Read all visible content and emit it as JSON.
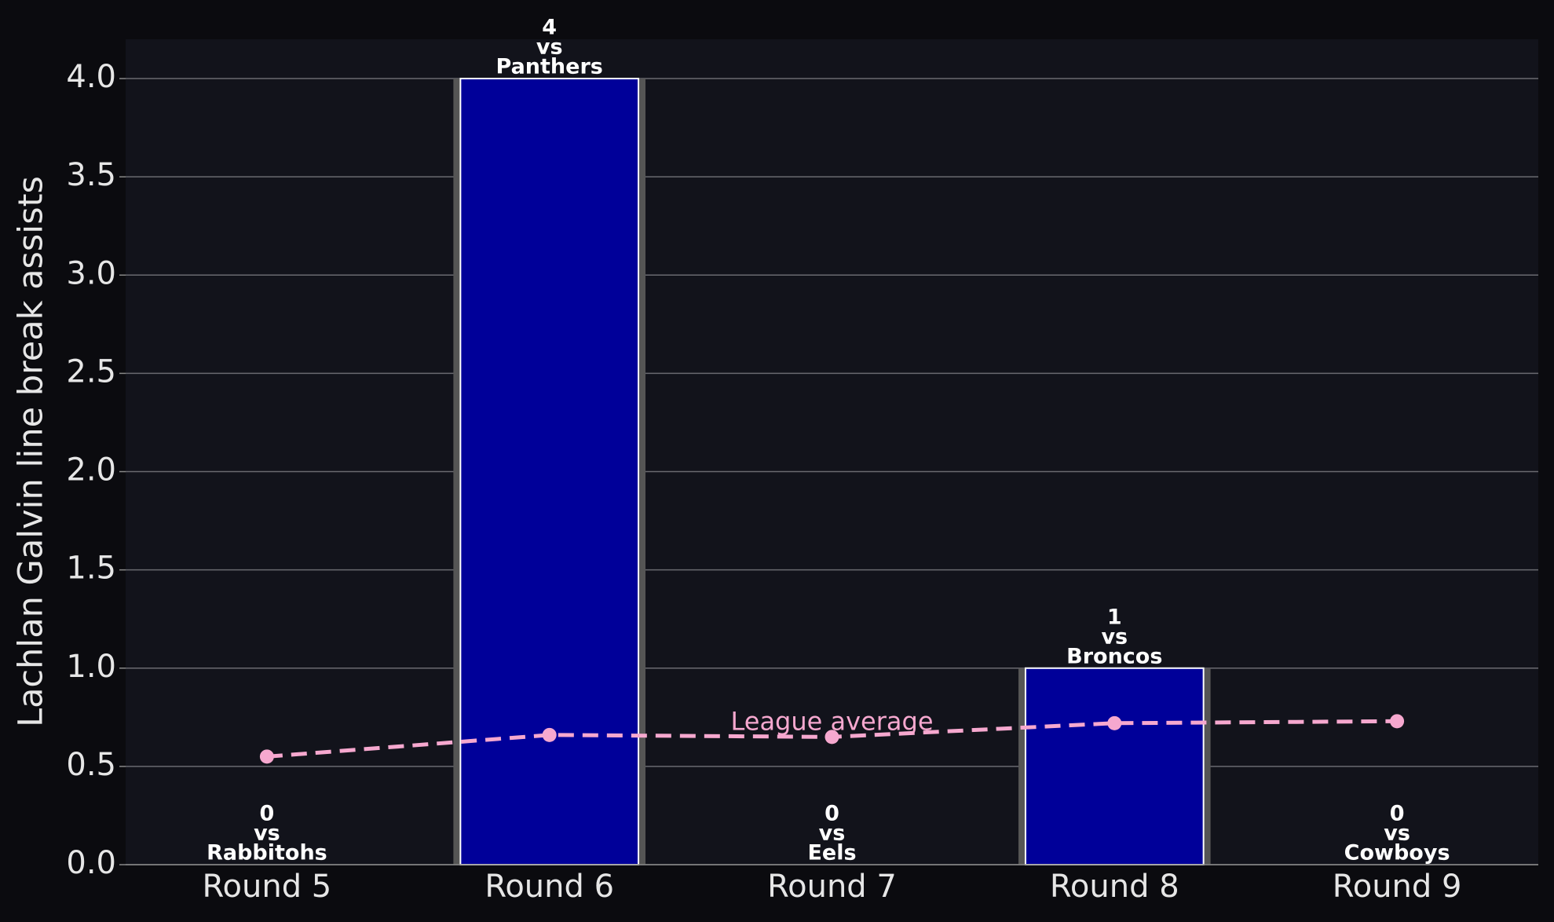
{
  "chart_data": {
    "type": "bar",
    "ylabel": "Lachlan Galvin line break assists",
    "categories": [
      "Round 5",
      "Round 6",
      "Round 7",
      "Round 8",
      "Round 9"
    ],
    "values": [
      0,
      4,
      0,
      1,
      0
    ],
    "opponents": [
      "Rabbitohs",
      "Panthers",
      "Eels",
      "Broncos",
      "Cowboys"
    ],
    "label_connector": "vs",
    "color": "#000099",
    "series": [
      {
        "name": "League average",
        "color": "#f6a8cf",
        "values": [
          0.55,
          0.66,
          0.65,
          0.72,
          0.73
        ]
      }
    ],
    "ylim": [
      0,
      4.2
    ],
    "yticks": [
      {
        "value": 0,
        "label": "0.0"
      },
      0.5,
      {
        "value": 1,
        "label": "1.0"
      },
      1.5,
      {
        "value": 2,
        "label": "2.0"
      },
      2.5,
      {
        "value": 3,
        "label": "3.0"
      },
      3.5,
      {
        "value": 4,
        "label": "4.0"
      }
    ],
    "grid": true
  }
}
